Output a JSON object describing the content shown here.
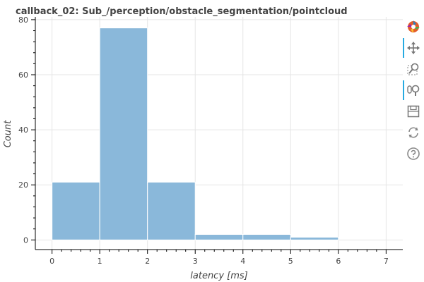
{
  "chart_data": {
    "type": "bar",
    "title": "callback_02: Sub_/perception/obstacle_segmentation/pointcloud",
    "xlabel": "latency [ms]",
    "ylabel": "Count",
    "xlim": [
      -0.35,
      7.35
    ],
    "ylim": [
      -3.5,
      81
    ],
    "x_ticks": [
      "0",
      "1",
      "2",
      "3",
      "4",
      "5",
      "6",
      "7"
    ],
    "y_ticks": [
      "0",
      "20",
      "40",
      "60",
      "80"
    ],
    "grid": true,
    "bar_color": "#8ab8da",
    "bins": [
      {
        "x0": 0,
        "x1": 1,
        "count": 21
      },
      {
        "x0": 1,
        "x1": 2,
        "count": 77
      },
      {
        "x0": 2,
        "x1": 3,
        "count": 21
      },
      {
        "x0": 3,
        "x1": 4,
        "count": 2
      },
      {
        "x0": 4,
        "x1": 5,
        "count": 2
      },
      {
        "x0": 5,
        "x1": 6,
        "count": 1
      }
    ]
  },
  "toolbar": {
    "tools": [
      {
        "name": "bokeh-logo-icon",
        "active": false
      },
      {
        "name": "pan-icon",
        "active": true
      },
      {
        "name": "box-zoom-icon",
        "active": false
      },
      {
        "name": "wheel-zoom-icon",
        "active": true
      },
      {
        "name": "save-icon",
        "active": false
      },
      {
        "name": "reset-icon",
        "active": false
      },
      {
        "name": "help-icon",
        "active": false
      }
    ]
  }
}
